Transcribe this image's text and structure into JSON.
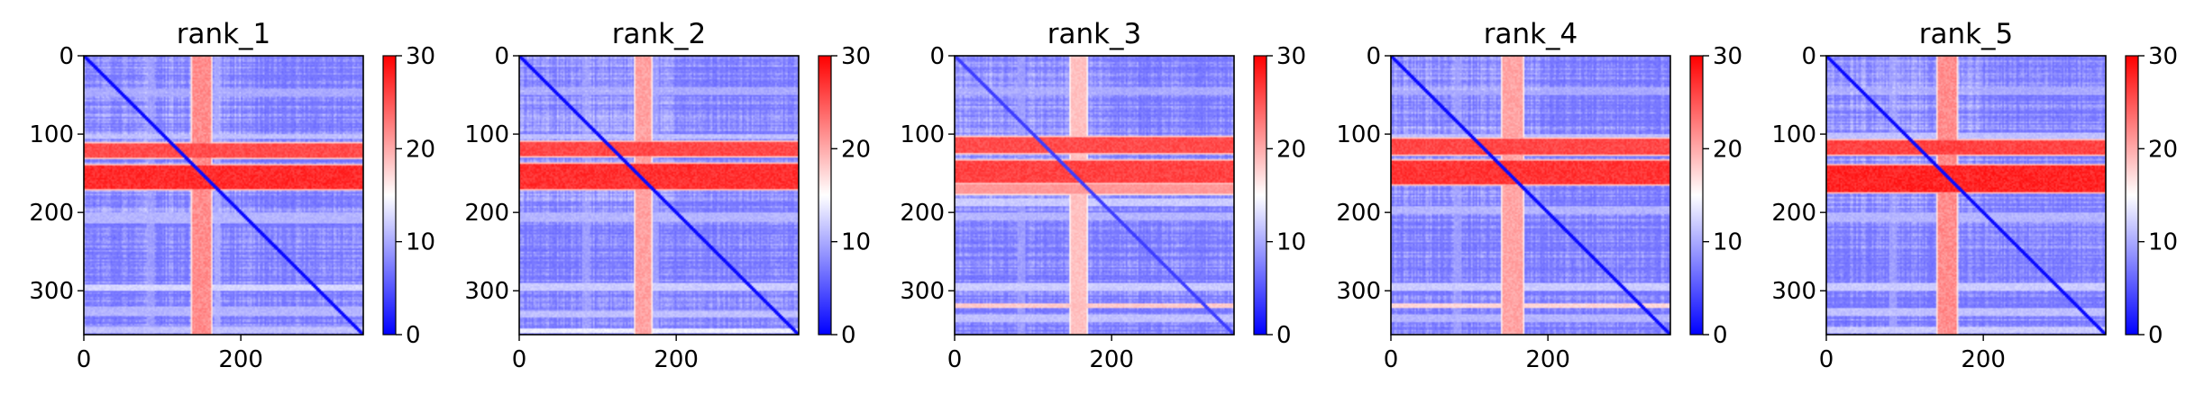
{
  "chart_data": [
    {
      "type": "heatmap",
      "title": "rank_1",
      "x_ticks": [
        0,
        200
      ],
      "y_ticks": [
        0,
        100,
        200,
        300
      ],
      "xlim": [
        0,
        356
      ],
      "ylim": [
        356,
        0
      ],
      "colorbar": {
        "cmap": "bwr",
        "range": [
          0,
          30
        ],
        "ticks": [
          0,
          10,
          20,
          30
        ]
      },
      "features": {
        "red_rows": [
          [
            112,
            128,
            0.78
          ],
          [
            140,
            168,
            0.92
          ]
        ],
        "red_columns": [
          [
            138,
            160,
            0.72
          ]
        ],
        "light_rows": [
          [
            42,
            50,
            0.25
          ],
          [
            100,
            104,
            0.35
          ],
          [
            200,
            212,
            0.3
          ],
          [
            292,
            298,
            0.45
          ],
          [
            320,
            330,
            0.3
          ],
          [
            345,
            352,
            0.35
          ]
        ],
        "light_columns": [
          [
            80,
            88,
            0.2
          ],
          [
            166,
            172,
            0.25
          ]
        ],
        "diagonal_extra": 0
      }
    },
    {
      "type": "heatmap",
      "title": "rank_2",
      "x_ticks": [
        0,
        200
      ],
      "y_ticks": [
        0,
        100,
        200,
        300
      ],
      "xlim": [
        0,
        356
      ],
      "ylim": [
        356,
        0
      ],
      "colorbar": {
        "cmap": "bwr",
        "range": [
          0,
          30
        ],
        "ticks": [
          0,
          10,
          20,
          30
        ]
      },
      "features": {
        "red_rows": [
          [
            110,
            126,
            0.8
          ],
          [
            138,
            168,
            0.9
          ]
        ],
        "red_columns": [
          [
            148,
            166,
            0.6
          ]
        ],
        "light_rows": [
          [
            40,
            48,
            0.25
          ],
          [
            100,
            104,
            0.35
          ],
          [
            200,
            210,
            0.3
          ],
          [
            290,
            298,
            0.4
          ],
          [
            325,
            332,
            0.35
          ],
          [
            348,
            352,
            0.55
          ]
        ],
        "light_columns": [
          [
            80,
            88,
            0.2
          ],
          [
            170,
            176,
            0.2
          ]
        ],
        "diagonal_extra": 0
      }
    },
    {
      "type": "heatmap",
      "title": "rank_3",
      "x_ticks": [
        0,
        200
      ],
      "y_ticks": [
        0,
        100,
        200,
        300
      ],
      "xlim": [
        0,
        356
      ],
      "ylim": [
        356,
        0
      ],
      "colorbar": {
        "cmap": "bwr",
        "range": [
          0,
          30
        ],
        "ticks": [
          0,
          10,
          20,
          30
        ]
      },
      "features": {
        "red_rows": [
          [
            104,
            122,
            0.78
          ],
          [
            134,
            160,
            0.82
          ],
          [
            164,
            174,
            0.45
          ]
        ],
        "red_columns": [
          [
            148,
            166,
            0.42
          ]
        ],
        "light_rows": [
          [
            40,
            48,
            0.25
          ],
          [
            182,
            190,
            0.4
          ],
          [
            200,
            208,
            0.3
          ],
          [
            290,
            298,
            0.4
          ],
          [
            316,
            320,
            0.85
          ],
          [
            330,
            338,
            0.35
          ]
        ],
        "light_columns": [
          [
            80,
            88,
            0.2
          ]
        ],
        "diagonal_extra": 0.1
      }
    },
    {
      "type": "heatmap",
      "title": "rank_4",
      "x_ticks": [
        0,
        200
      ],
      "y_ticks": [
        0,
        100,
        200,
        300
      ],
      "xlim": [
        0,
        356
      ],
      "ylim": [
        356,
        0
      ],
      "colorbar": {
        "cmap": "bwr",
        "range": [
          0,
          30
        ],
        "ticks": [
          0,
          10,
          20,
          30
        ]
      },
      "features": {
        "red_rows": [
          [
            106,
            124,
            0.8
          ],
          [
            134,
            162,
            0.88
          ]
        ],
        "red_columns": [
          [
            142,
            166,
            0.58
          ]
        ],
        "light_rows": [
          [
            40,
            48,
            0.25
          ],
          [
            100,
            104,
            0.35
          ],
          [
            192,
            200,
            0.3
          ],
          [
            290,
            298,
            0.4
          ],
          [
            316,
            320,
            0.8
          ],
          [
            330,
            338,
            0.3
          ]
        ],
        "light_columns": [
          [
            80,
            88,
            0.2
          ]
        ],
        "diagonal_extra": 0
      }
    },
    {
      "type": "heatmap",
      "title": "rank_5",
      "x_ticks": [
        0,
        200
      ],
      "y_ticks": [
        0,
        100,
        200,
        300
      ],
      "xlim": [
        0,
        356
      ],
      "ylim": [
        356,
        0
      ],
      "colorbar": {
        "cmap": "bwr",
        "range": [
          0,
          30
        ],
        "ticks": [
          0,
          10,
          20,
          30
        ]
      },
      "features": {
        "red_rows": [
          [
            108,
            124,
            0.82
          ],
          [
            140,
            172,
            0.95
          ]
        ],
        "red_columns": [
          [
            142,
            164,
            0.72
          ]
        ],
        "light_rows": [
          [
            40,
            48,
            0.25
          ],
          [
            98,
            104,
            0.35
          ],
          [
            200,
            210,
            0.3
          ],
          [
            290,
            298,
            0.4
          ],
          [
            322,
            330,
            0.35
          ],
          [
            346,
            352,
            0.4
          ]
        ],
        "light_columns": [
          [
            80,
            88,
            0.2
          ]
        ],
        "diagonal_extra": 0
      }
    }
  ]
}
